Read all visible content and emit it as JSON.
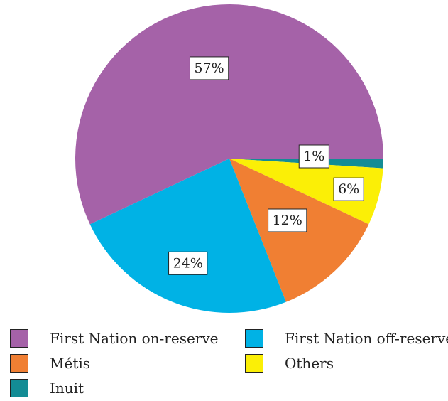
{
  "chart_data": {
    "type": "pie",
    "slices": [
      {
        "label": "First Nation on-reserve",
        "value": 57,
        "data_label": "57%",
        "color": "#a562a8"
      },
      {
        "label": "First Nation off-reserve",
        "value": 24,
        "data_label": "24%",
        "color": "#00b2e5"
      },
      {
        "label": "Métis",
        "value": 12,
        "data_label": "12%",
        "color": "#f07f33"
      },
      {
        "label": "Others",
        "value": 6,
        "data_label": "6%",
        "color": "#fbef06"
      },
      {
        "label": "Inuit",
        "value": 1,
        "data_label": "1%",
        "color": "#138c95"
      }
    ]
  },
  "legend": {
    "items": [
      {
        "label": "First Nation on-reserve",
        "color": "#a562a8"
      },
      {
        "label": "First Nation off-reserve",
        "color": "#00b2e5"
      },
      {
        "label": "Métis",
        "color": "#f07f33"
      },
      {
        "label": "Others",
        "color": "#fbef06"
      },
      {
        "label": "Inuit",
        "color": "#138c95"
      }
    ]
  }
}
